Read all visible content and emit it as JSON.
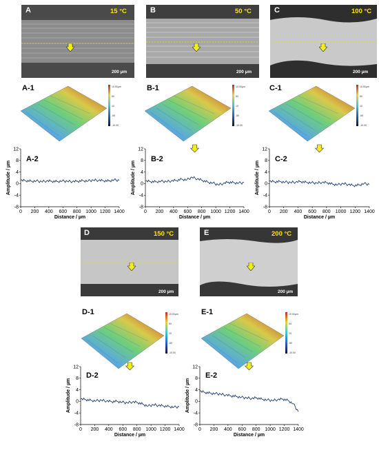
{
  "panels": [
    {
      "id": "A",
      "temp": "15 °C",
      "scale": "200 µm",
      "surf": "A-1",
      "plot": "A-2",
      "legend": [
        "10.00µm",
        "50",
        "10",
        "-50",
        "-10.00"
      ],
      "profile": [
        1.1,
        1.0,
        0.8,
        0.9,
        0.7,
        0.9,
        0.8,
        0.7,
        0.9,
        0.8,
        0.7,
        0.8,
        1.0,
        0.9,
        1.2,
        1.1,
        1.0,
        0.9,
        1.3,
        1.1
      ],
      "arrow": false
    },
    {
      "id": "B",
      "temp": "50 °C",
      "scale": "200 µm",
      "surf": "B-1",
      "plot": "B-2",
      "legend": [
        "10.00µm",
        "50",
        "10",
        "-50",
        "-10.00"
      ],
      "profile": [
        0.9,
        0.7,
        0.6,
        0.8,
        0.7,
        0.9,
        1.1,
        1.5,
        1.3,
        2.2,
        1.6,
        1.1,
        0.5,
        0.2,
        -0.4,
        0.0,
        0.5,
        0.3,
        0.2,
        0.3
      ],
      "arrow": true
    },
    {
      "id": "C",
      "temp": "100 °C",
      "scale": "200 µm",
      "surf": "C-1",
      "plot": "C-2",
      "legend": [
        "10.00µm",
        "50",
        "10",
        "-50",
        "-10.00"
      ],
      "profile": [
        0.8,
        0.6,
        0.7,
        0.5,
        0.4,
        0.5,
        0.7,
        0.4,
        0.3,
        0.2,
        0.4,
        0.3,
        -0.2,
        -0.4,
        0.0,
        -0.3,
        -0.7,
        -0.5,
        0.0,
        -0.3
      ],
      "arrow": true
    },
    {
      "id": "D",
      "temp": "150 °C",
      "scale": "200 µm",
      "surf": "D-1",
      "plot": "D-2",
      "legend": [
        "10.00µm",
        "50",
        "10",
        "-50",
        "-10.00"
      ],
      "profile": [
        0.8,
        0.6,
        0.3,
        0.2,
        0.4,
        0.1,
        -0.1,
        0.0,
        -0.3,
        -0.5,
        -0.2,
        -0.4,
        -1.0,
        -1.6,
        -1.2,
        -1.4,
        -1.6,
        -1.8,
        -2.0,
        -1.9
      ],
      "arrow": true
    },
    {
      "id": "E",
      "temp": "200 °C",
      "scale": "200 µm",
      "surf": "E-1",
      "plot": "E-2",
      "legend": [
        "10.00µm",
        "50",
        "10",
        "-50",
        "-10.00"
      ],
      "profile": [
        3.5,
        3.1,
        2.8,
        2.7,
        2.5,
        2.2,
        1.9,
        1.7,
        1.4,
        1.2,
        1.0,
        1.2,
        0.7,
        0.5,
        0.3,
        0.6,
        0.8,
        0.3,
        -0.8,
        -3.6
      ],
      "arrow": true
    }
  ],
  "axes": {
    "ylabel": "Amplitude / µm",
    "xlabel": "Distance / µm",
    "yticks": [
      "12",
      "8",
      "4",
      "0",
      "-4",
      "-8"
    ],
    "xticks": [
      "0",
      "200",
      "400",
      "600",
      "800",
      "1000",
      "1200",
      "1400"
    ]
  },
  "chart_data": [
    {
      "type": "line",
      "xlabel": "Distance / µm",
      "ylabel": "Amplitude / µm",
      "xlim": [
        0,
        1400
      ],
      "ylim": [
        -8,
        12
      ],
      "x": [
        0,
        74,
        147,
        221,
        295,
        368,
        442,
        516,
        589,
        663,
        737,
        811,
        884,
        958,
        1032,
        1105,
        1179,
        1253,
        1326,
        1400
      ],
      "series": [
        {
          "values": [
            1.1,
            1.0,
            0.8,
            0.9,
            0.7,
            0.9,
            0.8,
            0.7,
            0.9,
            0.8,
            0.7,
            0.8,
            1.0,
            0.9,
            1.2,
            1.1,
            1.0,
            0.9,
            1.3,
            1.1
          ]
        }
      ]
    },
    {
      "type": "line",
      "xlabel": "Distance / µm",
      "ylabel": "Amplitude / µm",
      "xlim": [
        0,
        1400
      ],
      "ylim": [
        -8,
        12
      ],
      "x": [
        0,
        74,
        147,
        221,
        295,
        368,
        442,
        516,
        589,
        663,
        737,
        811,
        884,
        958,
        1032,
        1105,
        1179,
        1253,
        1326,
        1400
      ],
      "series": [
        {
          "values": [
            0.9,
            0.7,
            0.6,
            0.8,
            0.7,
            0.9,
            1.1,
            1.5,
            1.3,
            2.2,
            1.6,
            1.1,
            0.5,
            0.2,
            -0.4,
            0.0,
            0.5,
            0.3,
            0.2,
            0.3
          ]
        }
      ]
    },
    {
      "type": "line",
      "xlabel": "Distance / µm",
      "ylabel": "Amplitude / µm",
      "xlim": [
        0,
        1400
      ],
      "ylim": [
        -8,
        12
      ],
      "x": [
        0,
        74,
        147,
        221,
        295,
        368,
        442,
        516,
        589,
        663,
        737,
        811,
        884,
        958,
        1032,
        1105,
        1179,
        1253,
        1326,
        1400
      ],
      "series": [
        {
          "values": [
            0.8,
            0.6,
            0.7,
            0.5,
            0.4,
            0.5,
            0.7,
            0.4,
            0.3,
            0.2,
            0.4,
            0.3,
            -0.2,
            -0.4,
            0.0,
            -0.3,
            -0.7,
            -0.5,
            0.0,
            -0.3
          ]
        }
      ]
    },
    {
      "type": "line",
      "xlabel": "Distance / µm",
      "ylabel": "Amplitude / µm",
      "xlim": [
        0,
        1400
      ],
      "ylim": [
        -8,
        12
      ],
      "x": [
        0,
        74,
        147,
        221,
        295,
        368,
        442,
        516,
        589,
        663,
        737,
        811,
        884,
        958,
        1032,
        1105,
        1179,
        1253,
        1326,
        1400
      ],
      "series": [
        {
          "values": [
            0.8,
            0.6,
            0.3,
            0.2,
            0.4,
            0.1,
            -0.1,
            0.0,
            -0.3,
            -0.5,
            -0.2,
            -0.4,
            -1.0,
            -1.6,
            -1.2,
            -1.4,
            -1.6,
            -1.8,
            -2.0,
            -1.9
          ]
        }
      ]
    },
    {
      "type": "line",
      "xlabel": "Distance / µm",
      "ylabel": "Amplitude / µm",
      "xlim": [
        0,
        1400
      ],
      "ylim": [
        -8,
        12
      ],
      "x": [
        0,
        74,
        147,
        221,
        295,
        368,
        442,
        516,
        589,
        663,
        737,
        811,
        884,
        958,
        1032,
        1105,
        1179,
        1253,
        1326,
        1400
      ],
      "series": [
        {
          "values": [
            3.5,
            3.1,
            2.8,
            2.7,
            2.5,
            2.2,
            1.9,
            1.7,
            1.4,
            1.2,
            1.0,
            1.2,
            0.7,
            0.5,
            0.3,
            0.6,
            0.8,
            0.3,
            -0.8,
            -3.6
          ]
        }
      ]
    }
  ],
  "colors": {
    "line": "#1f3a7a",
    "arrow": "#f2ee1a",
    "temp": "#ffe600"
  }
}
